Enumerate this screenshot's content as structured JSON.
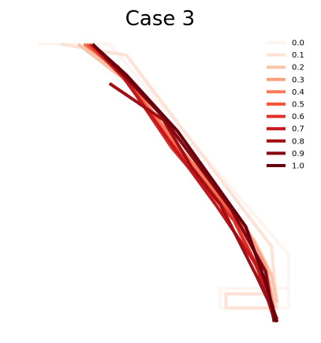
{
  "chart_data": {
    "type": "line",
    "title": "Case 3",
    "xlabel": "",
    "ylabel": "",
    "axes_visible": false,
    "grid": false,
    "legend_position": "top-right",
    "xlim": [
      0,
      100
    ],
    "ylim": [
      0,
      100
    ],
    "colormap": "Reds",
    "series": [
      {
        "name": "0.0",
        "color": "#fff5f0",
        "x": [
          8,
          33,
          96,
          96,
          72,
          72,
          96
        ],
        "y": [
          100,
          100,
          25,
          6,
          6,
          13,
          13
        ]
      },
      {
        "name": "0.1",
        "color": "#fee2d5",
        "x": [
          16,
          39,
          90,
          92,
          74,
          74,
          92
        ],
        "y": [
          100,
          96,
          28,
          6,
          6,
          11,
          11
        ]
      },
      {
        "name": "0.2",
        "color": "#fcc3ab",
        "x": [
          22,
          40,
          62,
          84,
          90,
          92
        ],
        "y": [
          100,
          86,
          57,
          30,
          18,
          8
        ]
      },
      {
        "name": "0.3",
        "color": "#fc9f81",
        "x": [
          24,
          38,
          60,
          82,
          88,
          91
        ],
        "y": [
          100,
          89,
          60,
          33,
          21,
          6
        ]
      },
      {
        "name": "0.4",
        "color": "#fb7b5b",
        "x": [
          24,
          36,
          57,
          79,
          85,
          91
        ],
        "y": [
          100,
          92,
          64,
          37,
          24,
          4
        ]
      },
      {
        "name": "0.5",
        "color": "#f5553d",
        "x": [
          25,
          38,
          54,
          76,
          86,
          92
        ],
        "y": [
          100,
          89,
          66,
          39,
          18,
          2
        ]
      },
      {
        "name": "0.6",
        "color": "#e23028",
        "x": [
          26,
          39,
          55,
          77,
          84,
          92
        ],
        "y": [
          100,
          87,
          63,
          37,
          23,
          1
        ]
      },
      {
        "name": "0.7",
        "color": "#c5171c",
        "x": [
          27,
          38,
          53,
          71,
          85,
          91
        ],
        "y": [
          100,
          88,
          67,
          42,
          21,
          2
        ]
      },
      {
        "name": "0.8",
        "color": "#a10f15",
        "x": [
          33,
          52,
          62,
          72,
          85,
          92
        ],
        "y": [
          86,
          73,
          56,
          43,
          17,
          2
        ]
      },
      {
        "name": "0.9",
        "color": "#840711",
        "x": [
          27,
          39,
          51,
          76,
          88,
          91
        ],
        "y": [
          100,
          88,
          75,
          41,
          19,
          1
        ]
      },
      {
        "name": "1.0",
        "color": "#67000d",
        "x": [
          27,
          39,
          57,
          81,
          88,
          92
        ],
        "y": [
          100,
          89,
          69,
          35,
          15,
          1
        ]
      }
    ]
  }
}
